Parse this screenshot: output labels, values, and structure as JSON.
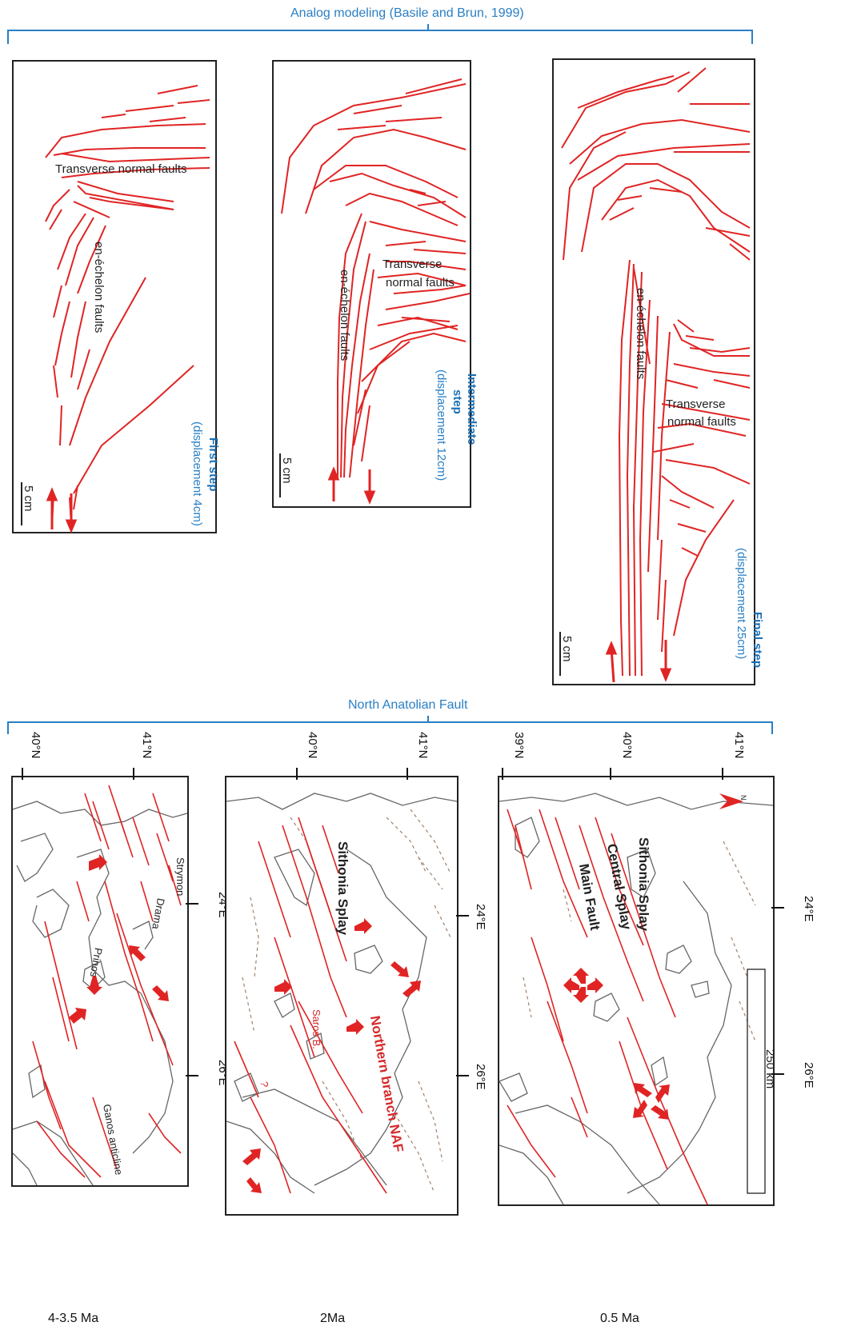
{
  "headers": {
    "analog": "Analog modeling (Basile and Brun, 1999)",
    "naf": "North Anatolian Fault"
  },
  "colors": {
    "fault": "#e02424",
    "frame": "#222222",
    "header": "#2a7fc4",
    "coast": "#666666"
  },
  "analog_panels": [
    {
      "step_bold": "First step",
      "step_detail": "(displacement 4cm)",
      "scale": "5 cm",
      "labels": {
        "transverse": "Transverse normal faults",
        "echelon": "en-échelon faults"
      }
    },
    {
      "step_bold_1": "Intermediate",
      "step_bold_2": "step",
      "step_detail": "(displacement 12cm)",
      "scale": "5 cm",
      "labels": {
        "transverse_1": "Transverse",
        "transverse_2": "normal faults",
        "echelon": "en-échelon faults"
      }
    },
    {
      "step_bold": "Final step",
      "step_detail": "(displacement 25cm)",
      "scale": "5 cm",
      "labels": {
        "transverse_1": "Transverse",
        "transverse_2": "normal faults",
        "echelon": "en-échelon faults"
      }
    }
  ],
  "maps": [
    {
      "age": "4-3.5 Ma",
      "lat_ticks": [
        "40°N",
        "41°N"
      ],
      "lon_ticks": [
        "24°E",
        "26°E"
      ],
      "labels": {
        "strymon": "Strymon",
        "drama": "Drama",
        "prinos": "Prinos",
        "ganos": "Ganos anticline"
      }
    },
    {
      "age": "2Ma",
      "lat_ticks": [
        "40°N",
        "41°N"
      ],
      "lon_ticks": [
        "24°E",
        "26°E"
      ],
      "labels": {
        "sithonia": "Sithonia Splay",
        "saros": "Saros B.",
        "naf": "Northern branch NAF",
        "q": "?"
      }
    },
    {
      "age": "0.5 Ma",
      "lat_ticks": [
        "39°N",
        "40°N",
        "41°N"
      ],
      "lon_ticks": [
        "24°E",
        "26°E"
      ],
      "labels": {
        "sithonia": "Sithonia Splay",
        "central": "Central Splay",
        "main": "Main Fault",
        "north": "N",
        "scale": "250 km"
      }
    }
  ]
}
